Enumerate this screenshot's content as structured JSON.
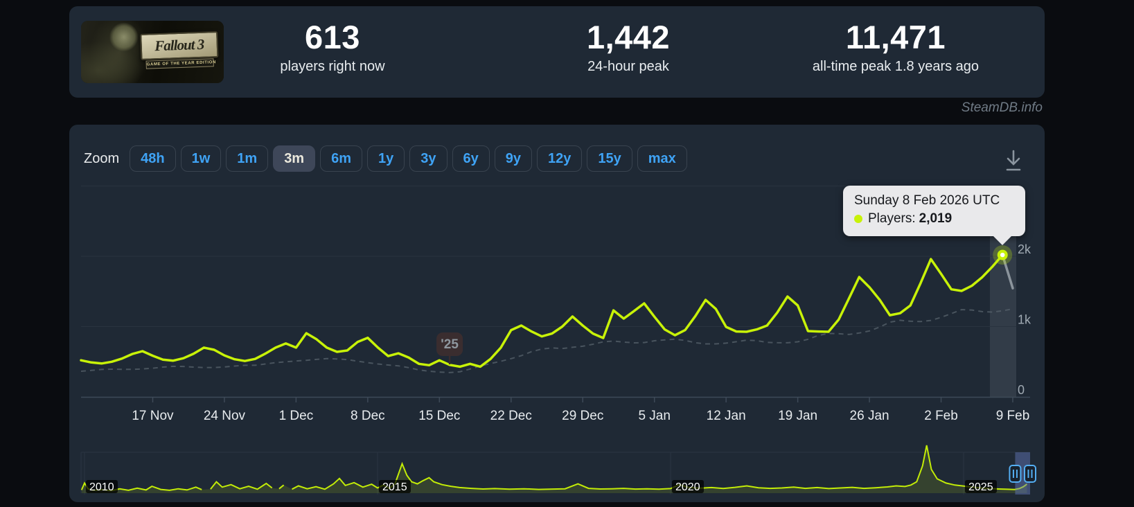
{
  "header": {
    "game_title": "Fallout 3",
    "game_subtitle": "GAME OF THE YEAR EDITION",
    "stats": [
      {
        "value": "613",
        "label": "players right now"
      },
      {
        "value": "1,442",
        "label": "24-hour peak"
      },
      {
        "value": "11,471",
        "label": "all-time peak 1.8 years ago"
      }
    ]
  },
  "watermark": "SteamDB.info",
  "toolbar": {
    "zoom_label": "Zoom",
    "ranges": [
      "48h",
      "1w",
      "1m",
      "3m",
      "6m",
      "1y",
      "3y",
      "6y",
      "9y",
      "12y",
      "15y",
      "max"
    ],
    "selected_range": "3m"
  },
  "tooltip": {
    "date": "Sunday 8 Feb 2026 UTC",
    "series_label": "Players:",
    "value": "2,019"
  },
  "colors": {
    "accent_line": "#c8f208",
    "link_blue": "#3fa3f5",
    "card_bg": "#1f2935",
    "page_bg": "#0a0c10",
    "tooltip_bg": "#e9e9eb",
    "gridline": "#29333f",
    "axis": "#3e4a58",
    "x_label": "#e7ebee",
    "y_label": "#a0aab3",
    "trend": "#545f69",
    "selection_blue": "rgba(102,125,194,0.45)",
    "handle_blue": "#54aef2"
  },
  "chart_data": {
    "type": "line",
    "title": "Fallout 3 concurrent players — 3 month zoom",
    "main": {
      "x_start": "10 Nov 2025",
      "x_end": "9 Feb 2026",
      "ylim": [
        0,
        3060
      ],
      "yticks": [
        {
          "v": 0,
          "label": "0"
        },
        {
          "v": 1000,
          "label": "1k"
        },
        {
          "v": 2000,
          "label": "2k"
        }
      ],
      "gridlines": [
        1000,
        2000,
        3000
      ],
      "xticks": [
        {
          "day": 7,
          "label": "17 Nov"
        },
        {
          "day": 14,
          "label": "24 Nov"
        },
        {
          "day": 21,
          "label": "1 Dec"
        },
        {
          "day": 28,
          "label": "8 Dec"
        },
        {
          "day": 35,
          "label": "15 Dec"
        },
        {
          "day": 42,
          "label": "22 Dec"
        },
        {
          "day": 49,
          "label": "29 Dec"
        },
        {
          "day": 56,
          "label": "5 Jan"
        },
        {
          "day": 63,
          "label": "12 Jan"
        },
        {
          "day": 70,
          "label": "19 Jan"
        },
        {
          "day": 77,
          "label": "26 Jan"
        },
        {
          "day": 84,
          "label": "2 Feb"
        },
        {
          "day": 91,
          "label": "9 Feb"
        }
      ],
      "series": [
        {
          "name": "Players",
          "color": "#c8f208",
          "values": [
            520,
            490,
            475,
            500,
            545,
            610,
            650,
            585,
            530,
            515,
            550,
            615,
            700,
            670,
            590,
            535,
            510,
            540,
            615,
            700,
            760,
            700,
            905,
            820,
            700,
            640,
            660,
            780,
            840,
            700,
            580,
            620,
            560,
            470,
            450,
            520,
            455,
            430,
            470,
            430,
            540,
            700,
            950,
            1015,
            930,
            860,
            900,
            1000,
            1143,
            1015,
            900,
            837,
            1231,
            1113,
            1220,
            1330,
            1140,
            960,
            877,
            950,
            1150,
            1379,
            1250,
            995,
            930,
            926,
            960,
            1015,
            1200,
            1428,
            1300,
            936,
            930,
            926,
            1100,
            1400,
            1704,
            1560,
            1380,
            1162,
            1190,
            1300,
            1620,
            1960,
            1750,
            1530,
            1507,
            1580,
            1700,
            1850,
            2019,
            1545
          ]
        }
      ],
      "hover_point": {
        "index": 90,
        "date": "Sunday 8 Feb 2026 UTC",
        "value": 2019
      },
      "year_flag": {
        "label": "'25",
        "index": 36
      }
    },
    "navigator": {
      "ylim": [
        0,
        11471
      ],
      "xticks": [
        {
          "year": 2010,
          "label": "2010"
        },
        {
          "year": 2015,
          "label": "2015"
        },
        {
          "year": 2020,
          "label": "2020"
        },
        {
          "year": 2025,
          "label": "2025"
        }
      ],
      "selection": {
        "start_year": 2025.88,
        "end_year": 2026.1
      },
      "points": [
        [
          2009.95,
          600
        ],
        [
          2010.0,
          2300
        ],
        [
          2010.06,
          900
        ],
        [
          2010.15,
          520
        ],
        [
          2010.3,
          700
        ],
        [
          2010.45,
          430
        ],
        [
          2010.6,
          880
        ],
        [
          2010.75,
          520
        ],
        [
          2010.9,
          1050
        ],
        [
          2011.05,
          600
        ],
        [
          2011.15,
          1500
        ],
        [
          2011.3,
          750
        ],
        [
          2011.45,
          520
        ],
        [
          2011.6,
          900
        ],
        [
          2011.75,
          600
        ],
        [
          2011.9,
          1300
        ],
        [
          2012.0,
          700
        ],
        [
          2012.1,
          null
        ],
        [
          2012.15,
          800
        ],
        [
          2012.25,
          2600
        ],
        [
          2012.35,
          1300
        ],
        [
          2012.5,
          1900
        ],
        [
          2012.65,
          900
        ],
        [
          2012.8,
          1500
        ],
        [
          2012.95,
          800
        ],
        [
          2013.1,
          2200
        ],
        [
          2013.2,
          1100
        ],
        [
          2013.26,
          null
        ],
        [
          2013.32,
          900
        ],
        [
          2013.4,
          1800
        ],
        [
          2013.46,
          null
        ],
        [
          2013.54,
          800
        ],
        [
          2013.65,
          1600
        ],
        [
          2013.8,
          900
        ],
        [
          2013.95,
          1400
        ],
        [
          2014.1,
          800
        ],
        [
          2014.25,
          2100
        ],
        [
          2014.35,
          3400
        ],
        [
          2014.45,
          1700
        ],
        [
          2014.6,
          2400
        ],
        [
          2014.75,
          1300
        ],
        [
          2014.9,
          2000
        ],
        [
          2015.0,
          1100
        ],
        [
          2015.1,
          1800
        ],
        [
          2015.2,
          1000
        ],
        [
          2015.3,
          2200
        ],
        [
          2015.42,
          7000
        ],
        [
          2015.5,
          4200
        ],
        [
          2015.58,
          2600
        ],
        [
          2015.68,
          2100
        ],
        [
          2015.78,
          2900
        ],
        [
          2015.88,
          3600
        ],
        [
          2015.96,
          2600
        ],
        [
          2016.1,
          1900
        ],
        [
          2016.25,
          1500
        ],
        [
          2016.4,
          1200
        ],
        [
          2016.6,
          1000
        ],
        [
          2016.8,
          850
        ],
        [
          2017.0,
          950
        ],
        [
          2017.25,
          800
        ],
        [
          2017.5,
          900
        ],
        [
          2017.75,
          750
        ],
        [
          2018.0,
          820
        ],
        [
          2018.2,
          900
        ],
        [
          2018.42,
          2100
        ],
        [
          2018.6,
          1000
        ],
        [
          2018.8,
          850
        ],
        [
          2019.0,
          900
        ],
        [
          2019.2,
          1000
        ],
        [
          2019.4,
          820
        ],
        [
          2019.6,
          900
        ],
        [
          2019.8,
          800
        ],
        [
          2020.0,
          950
        ],
        [
          2020.15,
          1900
        ],
        [
          2020.3,
          1250
        ],
        [
          2020.5,
          1050
        ],
        [
          2020.7,
          1200
        ],
        [
          2020.9,
          980
        ],
        [
          2021.1,
          1250
        ],
        [
          2021.3,
          1600
        ],
        [
          2021.5,
          1150
        ],
        [
          2021.7,
          1000
        ],
        [
          2021.9,
          1100
        ],
        [
          2022.1,
          1300
        ],
        [
          2022.3,
          1000
        ],
        [
          2022.5,
          1200
        ],
        [
          2022.7,
          950
        ],
        [
          2022.9,
          1100
        ],
        [
          2023.1,
          1250
        ],
        [
          2023.3,
          1000
        ],
        [
          2023.5,
          1150
        ],
        [
          2023.7,
          1350
        ],
        [
          2023.85,
          1600
        ],
        [
          2024.0,
          1450
        ],
        [
          2024.1,
          1800
        ],
        [
          2024.2,
          2600
        ],
        [
          2024.3,
          6500
        ],
        [
          2024.37,
          11471
        ],
        [
          2024.45,
          5600
        ],
        [
          2024.55,
          3300
        ],
        [
          2024.7,
          2300
        ],
        [
          2024.85,
          1800
        ],
        [
          2025.0,
          1550
        ],
        [
          2025.15,
          1300
        ],
        [
          2025.3,
          1100
        ],
        [
          2025.45,
          950
        ],
        [
          2025.6,
          850
        ],
        [
          2025.75,
          780
        ],
        [
          2025.87,
          720
        ],
        [
          2025.95,
          950
        ],
        [
          2026.02,
          1400
        ],
        [
          2026.08,
          2019
        ]
      ]
    }
  }
}
